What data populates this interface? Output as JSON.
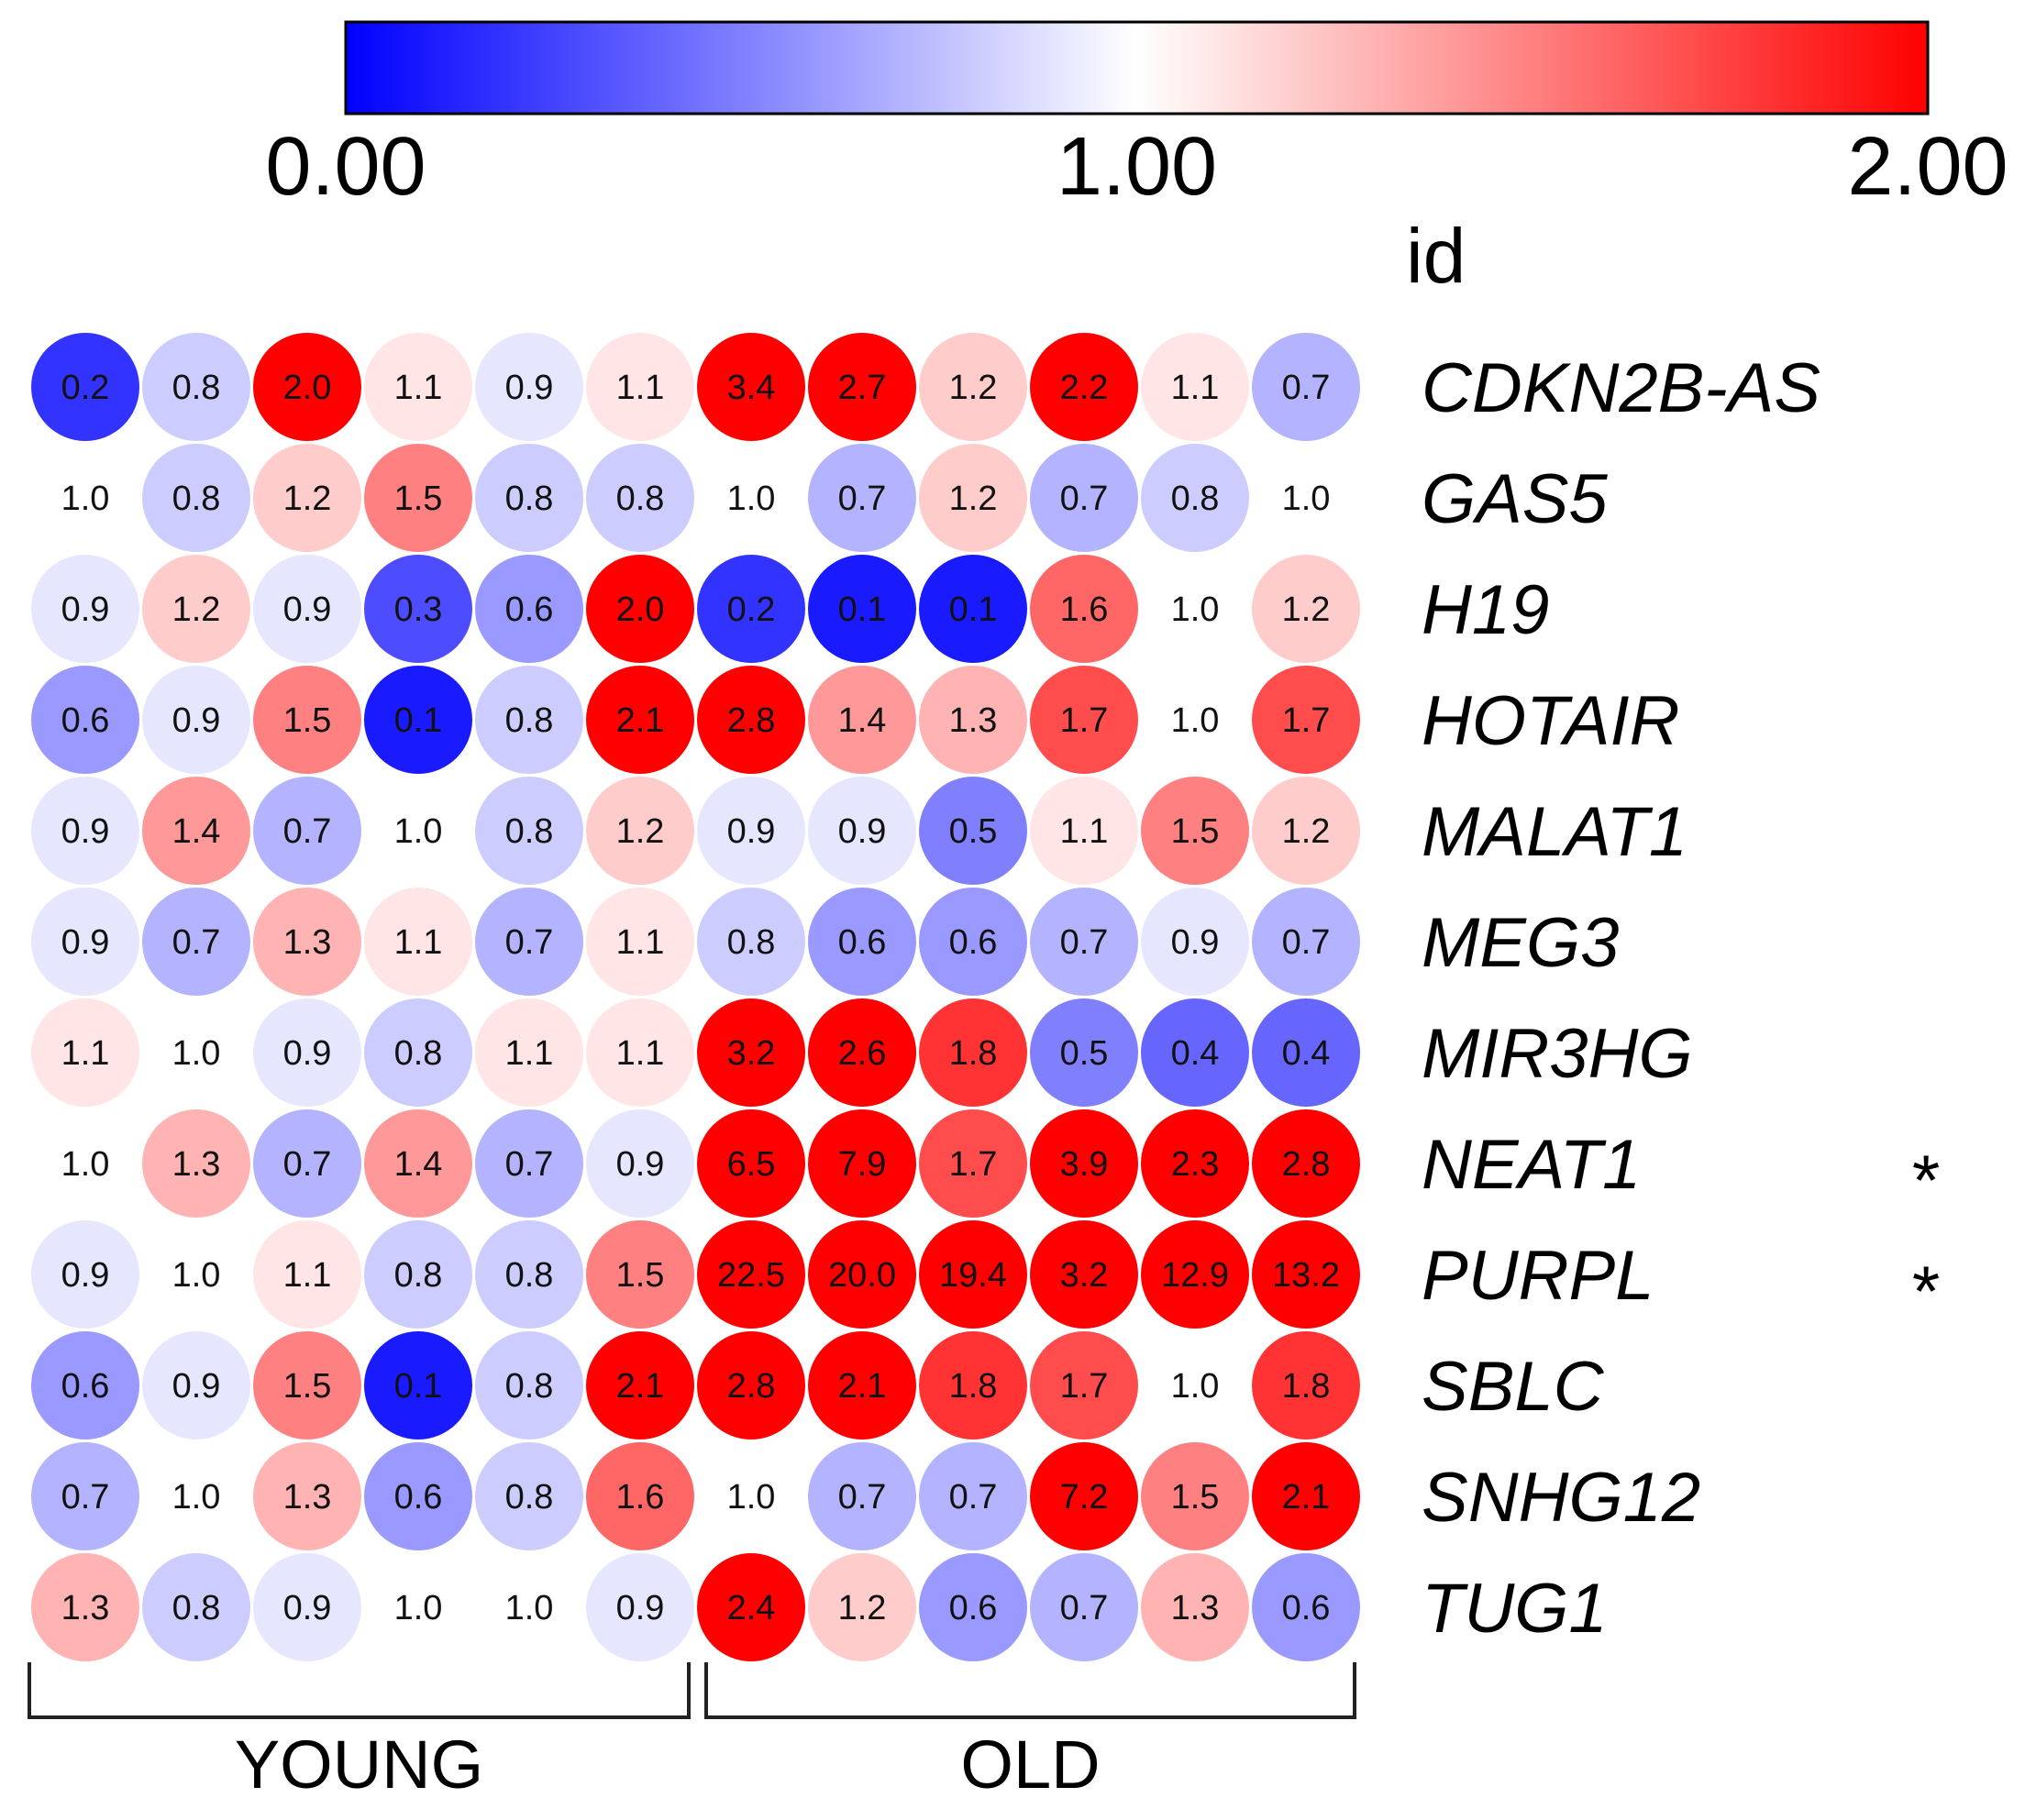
{
  "chart_data": {
    "type": "heatmap",
    "colorbar": {
      "colors": [
        "#0000ff",
        "#ffffff",
        "#ff0000"
      ],
      "range": [
        0,
        2
      ],
      "ticks": [
        "0.00",
        "1.00",
        "2.00"
      ],
      "title": "id"
    },
    "rows": [
      "CDKN2B-AS",
      "GAS5",
      "H19",
      "HOTAIR",
      "MALAT1",
      "MEG3",
      "MIR3HG",
      "NEAT1",
      "PURPL",
      "SBLC",
      "SNHG12",
      "TUG1"
    ],
    "row_marks": [
      "",
      "",
      "",
      "",
      "",
      "",
      "",
      "*",
      "*",
      "",
      "",
      ""
    ],
    "groups": [
      {
        "label": "YOUNG",
        "columns": 6
      },
      {
        "label": "OLD",
        "columns": 6
      }
    ],
    "values": [
      [
        "0.2",
        "0.8",
        "2.0",
        "1.1",
        "0.9",
        "1.1",
        "3.4",
        "2.7",
        "1.2",
        "2.2",
        "1.1",
        "0.7"
      ],
      [
        "1.0",
        "0.8",
        "1.2",
        "1.5",
        "0.8",
        "0.8",
        "1.0",
        "0.7",
        "1.2",
        "0.7",
        "0.8",
        "1.0"
      ],
      [
        "0.9",
        "1.2",
        "0.9",
        "0.3",
        "0.6",
        "2.0",
        "0.2",
        "0.1",
        "0.1",
        "1.6",
        "1.0",
        "1.2"
      ],
      [
        "0.6",
        "0.9",
        "1.5",
        "0.1",
        "0.8",
        "2.1",
        "2.8",
        "1.4",
        "1.3",
        "1.7",
        "1.0",
        "1.7"
      ],
      [
        "0.9",
        "1.4",
        "0.7",
        "1.0",
        "0.8",
        "1.2",
        "0.9",
        "0.9",
        "0.5",
        "1.1",
        "1.5",
        "1.2"
      ],
      [
        "0.9",
        "0.7",
        "1.3",
        "1.1",
        "0.7",
        "1.1",
        "0.8",
        "0.6",
        "0.6",
        "0.7",
        "0.9",
        "0.7"
      ],
      [
        "1.1",
        "1.0",
        "0.9",
        "0.8",
        "1.1",
        "1.1",
        "3.2",
        "2.6",
        "1.8",
        "0.5",
        "0.4",
        "0.4"
      ],
      [
        "1.0",
        "1.3",
        "0.7",
        "1.4",
        "0.7",
        "0.9",
        "6.5",
        "7.9",
        "1.7",
        "3.9",
        "2.3",
        "2.8"
      ],
      [
        "0.9",
        "1.0",
        "1.1",
        "0.8",
        "0.8",
        "1.5",
        "22.5",
        "20.0",
        "19.4",
        "3.2",
        "12.9",
        "13.2"
      ],
      [
        "0.6",
        "0.9",
        "1.5",
        "0.1",
        "0.8",
        "2.1",
        "2.8",
        "2.1",
        "1.8",
        "1.7",
        "1.0",
        "1.8"
      ],
      [
        "0.7",
        "1.0",
        "1.3",
        "0.6",
        "0.8",
        "1.6",
        "1.0",
        "0.7",
        "0.7",
        "7.2",
        "1.5",
        "2.1"
      ],
      [
        "1.3",
        "0.8",
        "0.9",
        "1.0",
        "1.0",
        "0.9",
        "2.4",
        "1.2",
        "0.6",
        "0.7",
        "1.3",
        "0.6"
      ]
    ]
  }
}
